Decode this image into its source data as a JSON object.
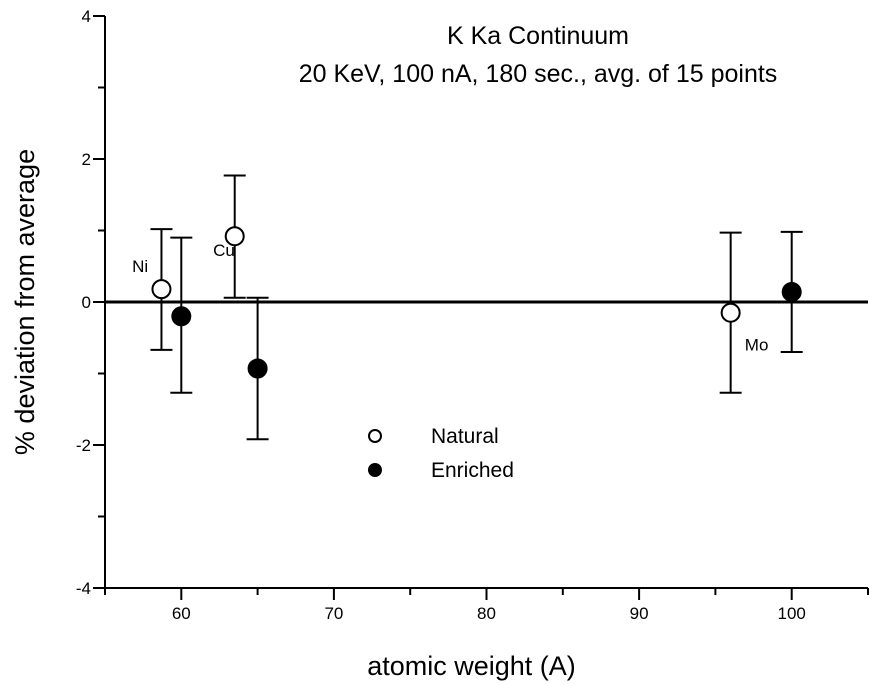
{
  "chart_data": {
    "type": "scatter",
    "title": "K Ka Continuum",
    "subtitle": "20 KeV, 100 nA, 180 sec., avg. of 15 points",
    "xlabel": "atomic weight (A)",
    "ylabel": "% deviation from average",
    "xlim": [
      55,
      105
    ],
    "ylim": [
      -4,
      4
    ],
    "x_ticks": [
      60,
      70,
      80,
      90,
      100
    ],
    "y_ticks": [
      -4,
      -2,
      0,
      2,
      4
    ],
    "x_tick_labels": [
      "60",
      "70",
      "80",
      "90",
      "100"
    ],
    "y_tick_labels": [
      "-4",
      "-2",
      "0",
      "2",
      "4"
    ],
    "grid": false,
    "reference_line_y": 0,
    "legend_position": "center-left",
    "series": [
      {
        "name": "Natural",
        "marker": "open-circle",
        "points": [
          {
            "x": 58.7,
            "y": 0.18,
            "err_low": -0.67,
            "err_high": 1.02
          },
          {
            "x": 63.5,
            "y": 0.92,
            "err_low": 0.06,
            "err_high": 1.77
          },
          {
            "x": 96.0,
            "y": -0.15,
            "err_low": -1.27,
            "err_high": 0.97
          }
        ]
      },
      {
        "name": "Enriched",
        "marker": "filled-circle",
        "points": [
          {
            "x": 60.0,
            "y": -0.2,
            "err_low": -1.27,
            "err_high": 0.9
          },
          {
            "x": 65.0,
            "y": -0.93,
            "err_low": -1.92,
            "err_high": 0.06
          },
          {
            "x": 100.0,
            "y": 0.14,
            "err_low": -0.7,
            "err_high": 0.98
          }
        ]
      }
    ],
    "annotations": [
      {
        "text": "Ni",
        "x": 57.3,
        "y": 0.42
      },
      {
        "text": "Cu",
        "x": 62.8,
        "y": 0.64
      },
      {
        "text": "Mo",
        "x": 97.7,
        "y": -0.68
      }
    ]
  }
}
